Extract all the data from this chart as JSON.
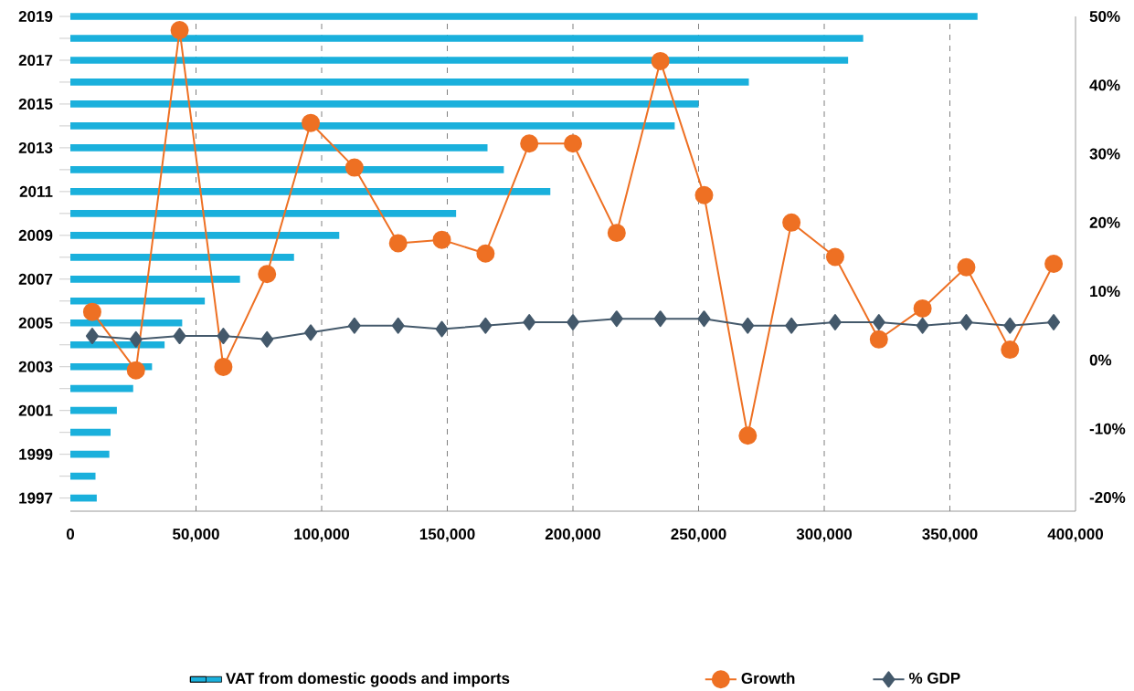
{
  "chart_data": [
    {
      "type": "bar",
      "orientation": "horizontal",
      "categories": [
        "2019",
        null,
        "2017",
        null,
        "2015",
        null,
        "2013",
        null,
        "2011",
        null,
        "2009",
        null,
        "2007",
        null,
        "2005",
        null,
        "2003",
        null,
        "2001",
        null,
        "1999",
        null,
        "1997"
      ],
      "xlim": [
        0,
        400000
      ],
      "xticks": [
        {
          "value": 0,
          "label": "0"
        },
        {
          "value": 50000,
          "label": "50,000"
        },
        {
          "value": 100000,
          "label": "100,000"
        },
        {
          "value": 150000,
          "label": "150,000"
        },
        {
          "value": 200000,
          "label": "200,000"
        },
        {
          "value": 250000,
          "label": "250,000"
        },
        {
          "value": 300000,
          "label": "300,000"
        },
        {
          "value": 350000,
          "label": "350,000"
        },
        {
          "value": 400000,
          "label": "400,000"
        }
      ],
      "grid": "x",
      "legend": "bottom",
      "series": [
        {
          "name": "VAT from domestic goods and imports",
          "color": "#1ab0dc",
          "values": [
            361000,
            315500,
            309500,
            270000,
            250000,
            240500,
            166000,
            172500,
            191000,
            153500,
            107000,
            89000,
            67500,
            53500,
            44500,
            37500,
            32500,
            25000,
            18500,
            16000,
            15500,
            10000,
            10500
          ]
        }
      ]
    },
    {
      "type": "line",
      "categories": [
        null,
        null,
        null,
        null,
        null,
        null,
        null,
        null,
        null,
        null,
        null,
        null,
        null,
        null,
        null,
        null,
        null,
        null,
        null,
        null,
        null,
        null,
        null
      ],
      "ylim": [
        -22,
        50
      ],
      "yticks": [
        {
          "value": -20,
          "label": "-20%"
        },
        {
          "value": -10,
          "label": "-10%"
        },
        {
          "value": 0,
          "label": "0%"
        },
        {
          "value": 10,
          "label": "10%"
        },
        {
          "value": 20,
          "label": "20%"
        },
        {
          "value": 30,
          "label": "30%"
        },
        {
          "value": 40,
          "label": "40%"
        },
        {
          "value": 50,
          "label": "50%"
        }
      ],
      "legend": "bottom",
      "series": [
        {
          "name": "Growth",
          "marker": "circle",
          "color": "#ee7023",
          "values": [
            7,
            -1.5,
            48,
            -1,
            12.5,
            34.5,
            28,
            17,
            17.5,
            15.5,
            31.5,
            31.5,
            18.5,
            43.5,
            24,
            -11,
            20,
            15,
            3,
            7.5,
            13.5,
            1.5,
            14
          ]
        },
        {
          "name": "% GDP",
          "marker": "diamond",
          "color": "#44596b",
          "values": [
            3.5,
            3,
            3.5,
            3.5,
            3,
            4,
            5,
            5,
            4.5,
            5,
            5.5,
            5.5,
            6,
            6,
            6,
            5,
            5,
            5.5,
            5.5,
            5,
            5.5,
            5,
            5.5
          ]
        }
      ]
    }
  ]
}
